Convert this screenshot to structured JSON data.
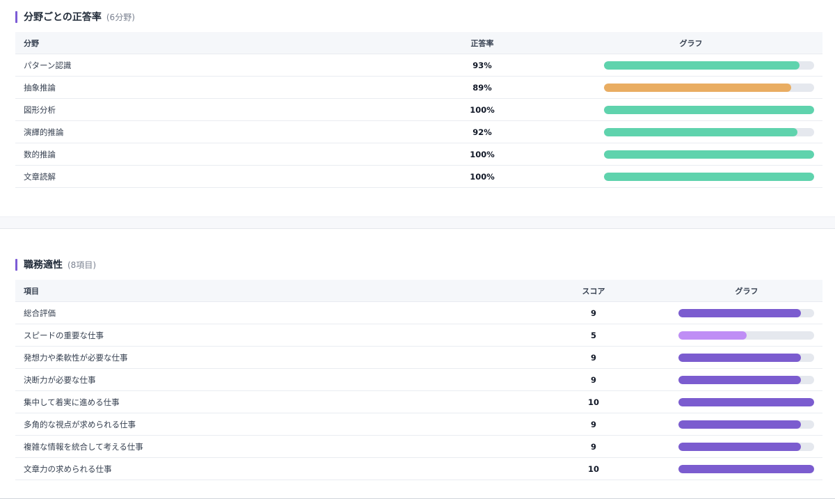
{
  "section1": {
    "title": "分野ごとの正答率",
    "count": "(6分野)",
    "headers": {
      "field": "分野",
      "rate": "正答率",
      "graph": "グラフ"
    },
    "rows": [
      {
        "name": "パターン認識",
        "value": "93%",
        "fraction": 0.93,
        "color": "#5fd3ad"
      },
      {
        "name": "抽象推論",
        "value": "89%",
        "fraction": 0.89,
        "color": "#e9ad62"
      },
      {
        "name": "図形分析",
        "value": "100%",
        "fraction": 1.0,
        "color": "#5fd3ad"
      },
      {
        "name": "演繹的推論",
        "value": "92%",
        "fraction": 0.92,
        "color": "#5fd3ad"
      },
      {
        "name": "数的推論",
        "value": "100%",
        "fraction": 1.0,
        "color": "#5fd3ad"
      },
      {
        "name": "文章読解",
        "value": "100%",
        "fraction": 1.0,
        "color": "#5fd3ad"
      }
    ]
  },
  "section2": {
    "title": "職務適性",
    "count": "(8項目)",
    "headers": {
      "item": "項目",
      "score": "スコア",
      "graph": "グラフ"
    },
    "rows": [
      {
        "name": "総合評価",
        "value": "9",
        "fraction": 0.9,
        "color": "#7b5ccf"
      },
      {
        "name": "スピードの重要な仕事",
        "value": "5",
        "fraction": 0.5,
        "color": "#bf8ef5"
      },
      {
        "name": "発想力や柔軟性が必要な仕事",
        "value": "9",
        "fraction": 0.9,
        "color": "#7b5ccf"
      },
      {
        "name": "決断力が必要な仕事",
        "value": "9",
        "fraction": 0.9,
        "color": "#7b5ccf"
      },
      {
        "name": "集中して着実に進める仕事",
        "value": "10",
        "fraction": 1.0,
        "color": "#7b5ccf"
      },
      {
        "name": "多角的な視点が求められる仕事",
        "value": "9",
        "fraction": 0.9,
        "color": "#7b5ccf"
      },
      {
        "name": "複雑な情報を統合して考える仕事",
        "value": "9",
        "fraction": 0.9,
        "color": "#7b5ccf"
      },
      {
        "name": "文章力の求められる仕事",
        "value": "10",
        "fraction": 1.0,
        "color": "#7b5ccf"
      }
    ]
  },
  "colors": {
    "accent": "#7c5cd6",
    "track": "#e5e8ee"
  }
}
